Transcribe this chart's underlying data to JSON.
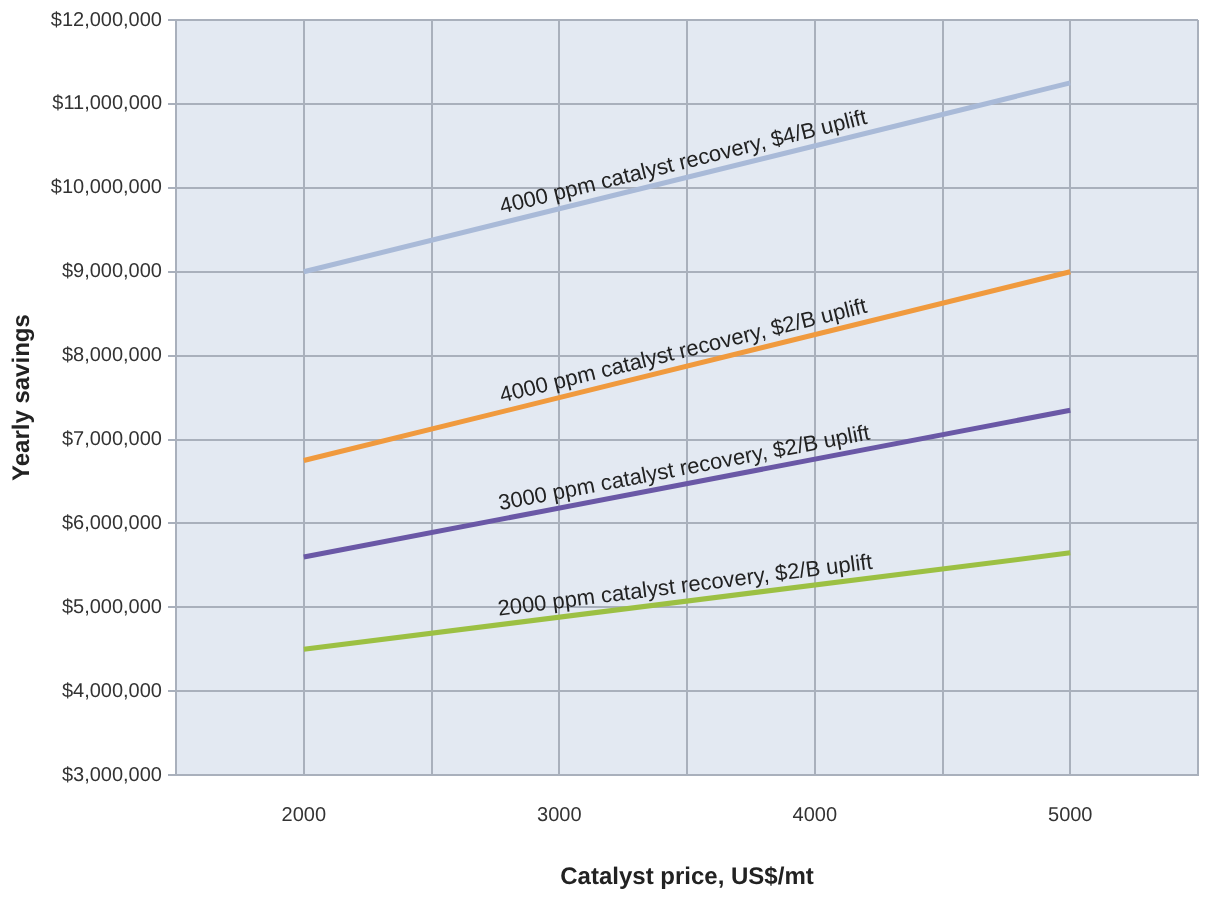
{
  "chart_data": {
    "type": "line",
    "xlabel": "Catalyst price, US$/mt",
    "ylabel": "Yearly savings",
    "x": [
      2000,
      5000
    ],
    "series": [
      {
        "name": "4000 ppm catalyst recovery, $4/B uplift",
        "color": "#a9bad8",
        "values": [
          9000000,
          11250000
        ]
      },
      {
        "name": "4000 ppm catalyst recovery, $2/B uplift",
        "color": "#f09a3e",
        "values": [
          6750000,
          9000000
        ]
      },
      {
        "name": "3000 ppm catalyst recovery, $2/B uplift",
        "color": "#6a58a6",
        "values": [
          5600000,
          7350000
        ]
      },
      {
        "name": "2000 ppm catalyst recovery, $2/B uplift",
        "color": "#9cc043",
        "values": [
          4500000,
          5650000
        ]
      }
    ],
    "xlim": [
      1500,
      5500
    ],
    "xticks": [
      {
        "value": 1500,
        "label": null
      },
      2000,
      {
        "value": 2500,
        "label": null
      },
      3000,
      {
        "value": 3500,
        "label": null
      },
      4000,
      {
        "value": 4500,
        "label": null
      },
      5000,
      {
        "value": 5500,
        "label": null
      }
    ],
    "ylim": [
      3000000,
      12000000
    ],
    "yticks": [
      {
        "value": 3000000,
        "label": "$3,000,000"
      },
      {
        "value": 4000000,
        "label": "$4,000,000"
      },
      {
        "value": 5000000,
        "label": "$5,000,000"
      },
      {
        "value": 6000000,
        "label": "$6,000,000"
      },
      {
        "value": 7000000,
        "label": "$7,000,000"
      },
      {
        "value": 8000000,
        "label": "$8,000,000"
      },
      {
        "value": 9000000,
        "label": "$9,000,000"
      },
      {
        "value": 10000000,
        "label": "$10,000,000"
      },
      {
        "value": 11000000,
        "label": "$11,000,000"
      },
      {
        "value": 12000000,
        "label": "$12,000,000"
      }
    ],
    "grid": true,
    "legend": false,
    "marker": "none",
    "line_style": "solid"
  }
}
